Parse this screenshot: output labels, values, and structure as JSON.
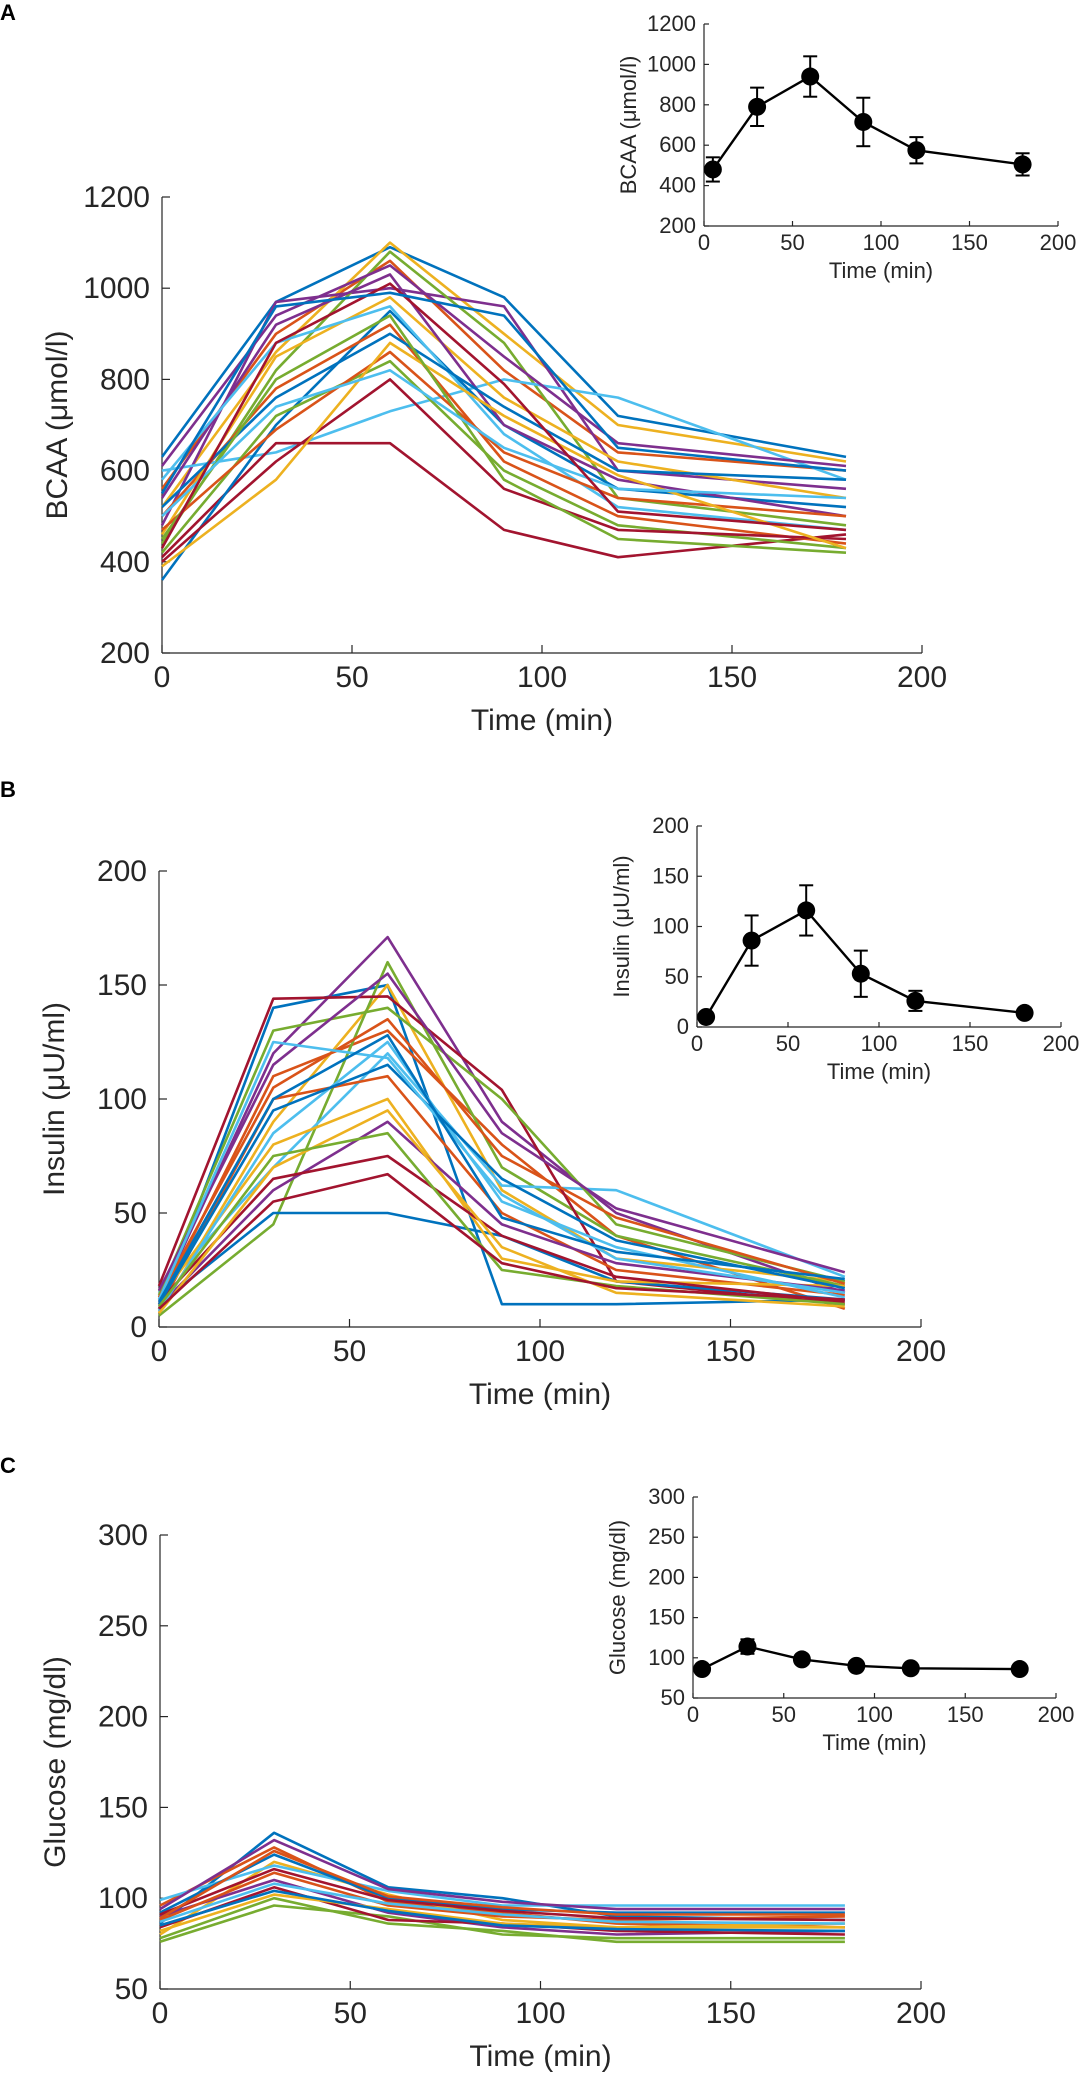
{
  "panels": [
    {
      "letter": "A"
    },
    {
      "letter": "B"
    },
    {
      "letter": "C"
    }
  ],
  "chart_data": [
    {
      "id": "A-main",
      "type": "line",
      "title": "",
      "xlabel": "Time (min)",
      "ylabel": "BCAA (μmol/l)",
      "xlim": [
        0,
        200
      ],
      "ylim": [
        200,
        1200
      ],
      "xticks": [
        0,
        50,
        100,
        150,
        200
      ],
      "yticks": [
        200,
        400,
        600,
        800,
        1000,
        1200
      ],
      "x": [
        0,
        30,
        60,
        90,
        120,
        180
      ],
      "note": "many individual subject trajectories; representative series shown",
      "palette": [
        "#0072BD",
        "#D95319",
        "#EDB120",
        "#7E2F8E",
        "#77AC30",
        "#4DBEEE",
        "#A2142F"
      ],
      "series": [
        {
          "values": [
            630,
            970,
            1090,
            980,
            720,
            630
          ]
        },
        {
          "values": [
            560,
            900,
            1060,
            820,
            640,
            600
          ]
        },
        {
          "values": [
            520,
            860,
            1100,
            900,
            700,
            620
          ]
        },
        {
          "values": [
            480,
            970,
            1000,
            960,
            600,
            560
          ]
        },
        {
          "values": [
            440,
            820,
            1080,
            880,
            540,
            480
          ]
        },
        {
          "values": [
            600,
            640,
            730,
            800,
            760,
            580
          ]
        },
        {
          "values": [
            410,
            660,
            660,
            470,
            410,
            460
          ]
        },
        {
          "values": [
            360,
            700,
            950,
            700,
            560,
            520
          ]
        },
        {
          "values": [
            500,
            780,
            920,
            620,
            500,
            440
          ]
        },
        {
          "values": [
            460,
            850,
            980,
            760,
            620,
            540
          ]
        },
        {
          "values": [
            540,
            920,
            1030,
            700,
            580,
            500
          ]
        },
        {
          "values": [
            420,
            720,
            840,
            600,
            480,
            430
          ]
        },
        {
          "values": [
            580,
            880,
            960,
            680,
            520,
            470
          ]
        },
        {
          "values": [
            400,
            620,
            800,
            560,
            470,
            450
          ]
        },
        {
          "values": [
            520,
            760,
            900,
            740,
            600,
            580
          ]
        },
        {
          "values": [
            470,
            690,
            860,
            640,
            540,
            500
          ]
        },
        {
          "values": [
            390,
            580,
            880,
            720,
            590,
            430
          ]
        },
        {
          "values": [
            610,
            940,
            1050,
            850,
            660,
            610
          ]
        },
        {
          "values": [
            450,
            800,
            940,
            580,
            450,
            420
          ]
        },
        {
          "values": [
            500,
            740,
            820,
            650,
            560,
            540
          ]
        },
        {
          "values": [
            430,
            880,
            1010,
            790,
            510,
            470
          ]
        },
        {
          "values": [
            550,
            960,
            990,
            940,
            650,
            600
          ]
        }
      ]
    },
    {
      "id": "A-inset",
      "type": "line",
      "title": "",
      "xlabel": "Time (min)",
      "ylabel": "BCAA (μmol/l)",
      "xlim": [
        0,
        200
      ],
      "ylim": [
        200,
        1200
      ],
      "xticks": [
        0,
        50,
        100,
        150,
        200
      ],
      "yticks": [
        200,
        400,
        600,
        800,
        1000,
        1200
      ],
      "x": [
        5,
        30,
        60,
        90,
        120,
        180
      ],
      "values": [
        480,
        790,
        940,
        715,
        575,
        505
      ],
      "errors": [
        60,
        95,
        100,
        120,
        65,
        55
      ],
      "color": "#000000"
    },
    {
      "id": "B-main",
      "type": "line",
      "title": "",
      "xlabel": "Time (min)",
      "ylabel": "Insulin (μU/ml)",
      "xlim": [
        0,
        200
      ],
      "ylim": [
        0,
        200
      ],
      "xticks": [
        0,
        50,
        100,
        150,
        200
      ],
      "yticks": [
        0,
        50,
        100,
        150,
        200
      ],
      "x": [
        0,
        30,
        60,
        90,
        120,
        180
      ],
      "note": "many individual subject trajectories; representative series shown",
      "palette": [
        "#0072BD",
        "#D95319",
        "#EDB120",
        "#7E2F8E",
        "#77AC30",
        "#4DBEEE",
        "#A2142F"
      ],
      "series": [
        {
          "values": [
            8,
            140,
            150,
            10,
            10,
            12
          ]
        },
        {
          "values": [
            10,
            110,
            130,
            80,
            40,
            8
          ]
        },
        {
          "values": [
            6,
            90,
            150,
            60,
            30,
            20
          ]
        },
        {
          "values": [
            12,
            120,
            171,
            90,
            50,
            15
          ]
        },
        {
          "values": [
            5,
            45,
            160,
            70,
            40,
            18
          ]
        },
        {
          "values": [
            15,
            70,
            120,
            62,
            60,
            22
          ]
        },
        {
          "values": [
            18,
            144,
            145,
            104,
            20,
            10
          ]
        },
        {
          "values": [
            10,
            50,
            50,
            40,
            20,
            12
          ]
        },
        {
          "values": [
            8,
            100,
            110,
            50,
            25,
            14
          ]
        },
        {
          "values": [
            12,
            80,
            100,
            30,
            20,
            18
          ]
        },
        {
          "values": [
            9,
            60,
            90,
            45,
            28,
            16
          ]
        },
        {
          "values": [
            14,
            130,
            140,
            100,
            45,
            20
          ]
        },
        {
          "values": [
            7,
            85,
            125,
            55,
            35,
            13
          ]
        },
        {
          "values": [
            11,
            65,
            75,
            40,
            22,
            11
          ]
        },
        {
          "values": [
            10,
            95,
            115,
            65,
            38,
            17
          ]
        },
        {
          "values": [
            13,
            105,
            135,
            75,
            48,
            19
          ]
        },
        {
          "values": [
            6,
            70,
            95,
            35,
            15,
            9
          ]
        },
        {
          "values": [
            16,
            115,
            155,
            85,
            52,
            24
          ]
        },
        {
          "values": [
            9,
            75,
            85,
            25,
            18,
            10
          ]
        },
        {
          "values": [
            12,
            125,
            118,
            58,
            30,
            15
          ]
        },
        {
          "values": [
            8,
            55,
            67,
            28,
            17,
            12
          ]
        },
        {
          "values": [
            11,
            100,
            128,
            48,
            33,
            21
          ]
        }
      ]
    },
    {
      "id": "B-inset",
      "type": "line",
      "title": "",
      "xlabel": "Time (min)",
      "ylabel": "Insulin (μU/ml)",
      "xlim": [
        0,
        200
      ],
      "ylim": [
        0,
        200
      ],
      "xticks": [
        0,
        50,
        100,
        150,
        200
      ],
      "yticks": [
        0,
        50,
        100,
        150,
        200
      ],
      "x": [
        5,
        30,
        60,
        90,
        120,
        180
      ],
      "values": [
        10,
        86,
        116,
        53,
        26,
        14
      ],
      "errors": [
        3,
        25,
        25,
        23,
        10,
        3
      ],
      "color": "#000000"
    },
    {
      "id": "C-main",
      "type": "line",
      "title": "",
      "xlabel": "Time (min)",
      "ylabel": "Glucose (mg/dl)",
      "xlim": [
        0,
        200
      ],
      "ylim": [
        50,
        300
      ],
      "xticks": [
        0,
        50,
        100,
        150,
        200
      ],
      "yticks": [
        50,
        100,
        150,
        200,
        250,
        300
      ],
      "x": [
        0,
        30,
        60,
        90,
        120,
        180
      ],
      "note": "many individual subject trajectories; representative series shown",
      "palette": [
        "#0072BD",
        "#D95319",
        "#EDB120",
        "#7E2F8E",
        "#77AC30",
        "#4DBEEE",
        "#A2142F"
      ],
      "series": [
        {
          "values": [
            86,
            136,
            106,
            100,
            90,
            88
          ]
        },
        {
          "values": [
            96,
            128,
            98,
            92,
            86,
            84
          ]
        },
        {
          "values": [
            80,
            120,
            102,
            88,
            84,
            86
          ]
        },
        {
          "values": [
            90,
            110,
            92,
            84,
            80,
            82
          ]
        },
        {
          "values": [
            76,
            96,
            90,
            80,
            78,
            78
          ]
        },
        {
          "values": [
            99,
            118,
            104,
            96,
            96,
            96
          ]
        },
        {
          "values": [
            84,
            106,
            88,
            86,
            82,
            80
          ]
        },
        {
          "values": [
            92,
            124,
            100,
            94,
            92,
            92
          ]
        },
        {
          "values": [
            88,
            114,
            96,
            90,
            88,
            90
          ]
        },
        {
          "values": [
            82,
            102,
            94,
            86,
            84,
            84
          ]
        },
        {
          "values": [
            94,
            132,
            105,
            98,
            94,
            94
          ]
        },
        {
          "values": [
            78,
            100,
            86,
            82,
            76,
            76
          ]
        },
        {
          "values": [
            87,
            108,
            97,
            91,
            87,
            86
          ]
        },
        {
          "values": [
            91,
            116,
            99,
            93,
            89,
            88
          ]
        },
        {
          "values": [
            85,
            104,
            93,
            85,
            83,
            82
          ]
        },
        {
          "values": [
            89,
            126,
            101,
            95,
            91,
            91
          ]
        }
      ]
    },
    {
      "id": "C-inset",
      "type": "line",
      "title": "",
      "xlabel": "Time (min)",
      "ylabel": "Glucose (mg/dl)",
      "xlim": [
        0,
        200
      ],
      "ylim": [
        50,
        300
      ],
      "xticks": [
        0,
        50,
        100,
        150,
        200
      ],
      "yticks": [
        50,
        100,
        150,
        200,
        250,
        300
      ],
      "x": [
        5,
        30,
        60,
        90,
        120,
        180
      ],
      "values": [
        86,
        114,
        98,
        90,
        87,
        86
      ],
      "errors": [
        3,
        9,
        3,
        2,
        2,
        2
      ],
      "color": "#000000"
    }
  ]
}
